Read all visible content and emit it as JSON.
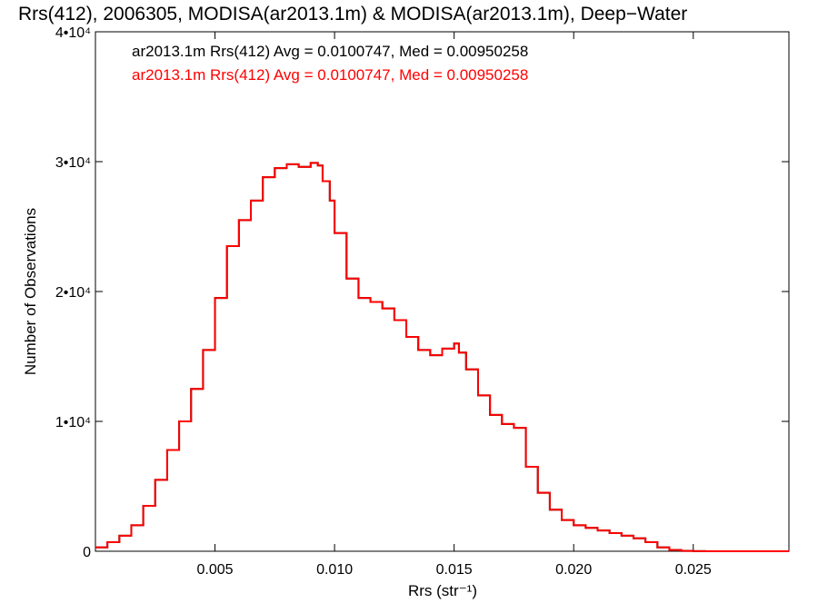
{
  "chart_data": {
    "type": "line",
    "title": "Rrs(412), 2006305, MODISA(ar2013.1m) & MODISA(ar2013.1m), Deep−Water",
    "xlabel": "Rrs (str⁻¹)",
    "ylabel": "Number of Observations",
    "xlim": [
      0.0,
      0.029
    ],
    "ylim": [
      0,
      40000
    ],
    "x_ticks": [
      {
        "value": 0.005,
        "label": "0.005"
      },
      {
        "value": 0.01,
        "label": "0.010"
      },
      {
        "value": 0.015,
        "label": "0.015"
      },
      {
        "value": 0.02,
        "label": "0.020"
      },
      {
        "value": 0.025,
        "label": "0.025"
      }
    ],
    "y_ticks": [
      {
        "value": 0,
        "label": "0"
      },
      {
        "value": 10000,
        "label": "1•10⁴"
      },
      {
        "value": 20000,
        "label": "2•10⁴"
      },
      {
        "value": 30000,
        "label": "3•10⁴"
      },
      {
        "value": 40000,
        "label": "4•10⁴"
      }
    ],
    "grid": false,
    "legend_position": "top-left",
    "series": [
      {
        "name": "ar2013.1m Rrs(412) Avg = 0.0100747, Med = 0.00950258",
        "color": "#000000",
        "step": true,
        "x": [
          0.0,
          0.0005,
          0.001,
          0.0015,
          0.002,
          0.0025,
          0.003,
          0.0035,
          0.004,
          0.0045,
          0.005,
          0.0055,
          0.006,
          0.0065,
          0.007,
          0.0075,
          0.008,
          0.0085,
          0.009,
          0.0093,
          0.0095,
          0.0098,
          0.01,
          0.0105,
          0.011,
          0.0115,
          0.012,
          0.0125,
          0.013,
          0.0135,
          0.014,
          0.0145,
          0.015,
          0.0152,
          0.0155,
          0.016,
          0.0165,
          0.017,
          0.0175,
          0.018,
          0.0185,
          0.019,
          0.0195,
          0.02,
          0.0205,
          0.021,
          0.0215,
          0.022,
          0.0225,
          0.023,
          0.0235,
          0.024,
          0.0245,
          0.025,
          0.0255,
          0.026,
          0.029
        ],
        "y": [
          300,
          700,
          1200,
          2000,
          3500,
          5500,
          7800,
          10000,
          12500,
          15500,
          19500,
          23500,
          25500,
          27000,
          28800,
          29500,
          29800,
          29600,
          29900,
          29700,
          28500,
          27000,
          24500,
          21000,
          19500,
          19200,
          18700,
          17800,
          16500,
          15500,
          15100,
          15600,
          16000,
          15300,
          14000,
          12000,
          10500,
          9800,
          9500,
          6500,
          4500,
          3200,
          2400,
          2000,
          1800,
          1600,
          1400,
          1200,
          1000,
          700,
          300,
          100,
          30,
          10,
          0,
          0,
          0
        ]
      },
      {
        "name": "ar2013.1m Rrs(412) Avg = 0.0100747, Med = 0.00950258",
        "color": "#ff0000",
        "step": true,
        "x": [
          0.0,
          0.0005,
          0.001,
          0.0015,
          0.002,
          0.0025,
          0.003,
          0.0035,
          0.004,
          0.0045,
          0.005,
          0.0055,
          0.006,
          0.0065,
          0.007,
          0.0075,
          0.008,
          0.0085,
          0.009,
          0.0093,
          0.0095,
          0.0098,
          0.01,
          0.0105,
          0.011,
          0.0115,
          0.012,
          0.0125,
          0.013,
          0.0135,
          0.014,
          0.0145,
          0.015,
          0.0152,
          0.0155,
          0.016,
          0.0165,
          0.017,
          0.0175,
          0.018,
          0.0185,
          0.019,
          0.0195,
          0.02,
          0.0205,
          0.021,
          0.0215,
          0.022,
          0.0225,
          0.023,
          0.0235,
          0.024,
          0.0245,
          0.025,
          0.0255,
          0.026,
          0.029
        ],
        "y": [
          300,
          700,
          1200,
          2000,
          3500,
          5500,
          7800,
          10000,
          12500,
          15500,
          19500,
          23500,
          25500,
          27000,
          28800,
          29500,
          29800,
          29600,
          29900,
          29700,
          28500,
          27000,
          24500,
          21000,
          19500,
          19200,
          18700,
          17800,
          16500,
          15500,
          15100,
          15600,
          16000,
          15300,
          14000,
          12000,
          10500,
          9800,
          9500,
          6500,
          4500,
          3200,
          2400,
          2000,
          1800,
          1600,
          1400,
          1200,
          1000,
          700,
          300,
          100,
          30,
          10,
          0,
          0,
          0
        ]
      }
    ]
  }
}
